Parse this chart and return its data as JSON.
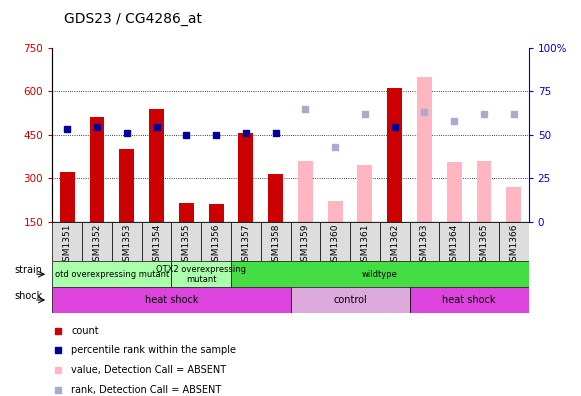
{
  "title": "GDS23 / CG4286_at",
  "samples": [
    "GSM1351",
    "GSM1352",
    "GSM1353",
    "GSM1354",
    "GSM1355",
    "GSM1356",
    "GSM1357",
    "GSM1358",
    "GSM1359",
    "GSM1360",
    "GSM1361",
    "GSM1362",
    "GSM1363",
    "GSM1364",
    "GSM1365",
    "GSM1366"
  ],
  "red_bars": [
    320,
    510,
    400,
    540,
    215,
    210,
    455,
    315,
    null,
    null,
    null,
    610,
    null,
    null,
    null,
    null
  ],
  "pink_bars": [
    null,
    null,
    null,
    null,
    null,
    null,
    null,
    null,
    360,
    220,
    345,
    null,
    650,
    355,
    360,
    270
  ],
  "blue_squares_left": [
    470,
    475,
    455,
    475,
    450,
    450,
    455,
    455,
    null,
    null,
    null,
    475,
    null,
    null,
    null,
    null
  ],
  "light_blue_squares_pct": [
    null,
    null,
    null,
    null,
    null,
    null,
    null,
    null,
    65,
    43,
    62,
    null,
    63,
    58,
    62,
    62
  ],
  "ylim_left": [
    150,
    750
  ],
  "ylim_right": [
    0,
    100
  ],
  "yticks_left": [
    150,
    300,
    450,
    600,
    750
  ],
  "yticks_right": [
    0,
    25,
    50,
    75,
    100
  ],
  "red_color": "#CC0000",
  "pink_color": "#FFB6C1",
  "blue_color": "#000099",
  "light_blue_color": "#AAAACC",
  "axis_left_color": "#CC0000",
  "axis_right_color": "#0000CC",
  "strain_data": [
    {
      "start": 0,
      "end": 4,
      "color": "#AAFFAA",
      "label": "otd overexpressing mutant"
    },
    {
      "start": 4,
      "end": 6,
      "color": "#AAFFAA",
      "label": "OTX2 overexpressing\nmutant"
    },
    {
      "start": 6,
      "end": 16,
      "color": "#44DD44",
      "label": "wildtype"
    }
  ],
  "shock_data": [
    {
      "start": 0,
      "end": 8,
      "color": "#DD44DD",
      "label": "heat shock"
    },
    {
      "start": 8,
      "end": 12,
      "color": "#DDAADD",
      "label": "control"
    },
    {
      "start": 12,
      "end": 16,
      "color": "#DD44DD",
      "label": "heat shock"
    }
  ],
  "legend_items": [
    {
      "color": "#CC0000",
      "label": "count"
    },
    {
      "color": "#000099",
      "label": "percentile rank within the sample"
    },
    {
      "color": "#FFB6C1",
      "label": "value, Detection Call = ABSENT"
    },
    {
      "color": "#AAAACC",
      "label": "rank, Detection Call = ABSENT"
    }
  ]
}
